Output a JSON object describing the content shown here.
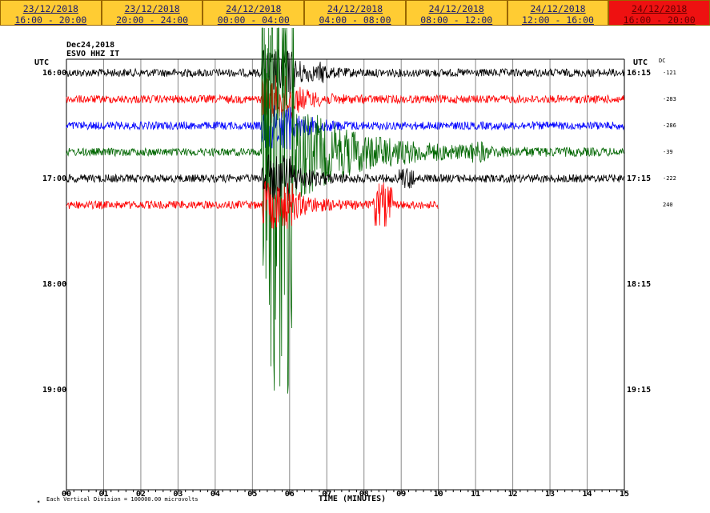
{
  "tabs": [
    {
      "date": "23/12/2018",
      "time": "16:00 - 20:00"
    },
    {
      "date": "23/12/2018",
      "time": "20:00 - 24:00"
    },
    {
      "date": "24/12/2018",
      "time": "00:00 - 04:00"
    },
    {
      "date": "24/12/2018",
      "time": "04:00 - 08:00"
    },
    {
      "date": "24/12/2018",
      "time": "08:00 - 12:00"
    },
    {
      "date": "24/12/2018",
      "time": "12:00 - 16:00"
    },
    {
      "date": "24/12/2018",
      "time": "16:00 - 20:00",
      "active": true
    }
  ],
  "header": {
    "date": "Dec24,2018",
    "station": "ESVO HHZ IT",
    "left_unit": "UTC",
    "right_unit": "UTC",
    "dc_label": "DC"
  },
  "left_times": [
    "16:00",
    "17:00",
    "18:00",
    "19:00"
  ],
  "right_times": [
    "16:15",
    "17:15",
    "18:15",
    "19:15"
  ],
  "traces": [
    {
      "dc": "-121",
      "color": "#000000"
    },
    {
      "dc": "-283",
      "color": "#ff0000"
    },
    {
      "dc": "-286",
      "color": "#0000ff"
    },
    {
      "dc": "-39",
      "color": "#006600"
    },
    {
      "dc": "-222",
      "color": "#000000"
    },
    {
      "dc": "240",
      "color": "#ff0000"
    }
  ],
  "x_labels": [
    "00",
    "01",
    "02",
    "03",
    "04",
    "05",
    "06",
    "07",
    "08",
    "09",
    "10",
    "11",
    "12",
    "13",
    "14",
    "15"
  ],
  "x_title": "TIME (MINUTES)",
  "footer": "Each Vertical Division = 100000.00 microvolts"
}
